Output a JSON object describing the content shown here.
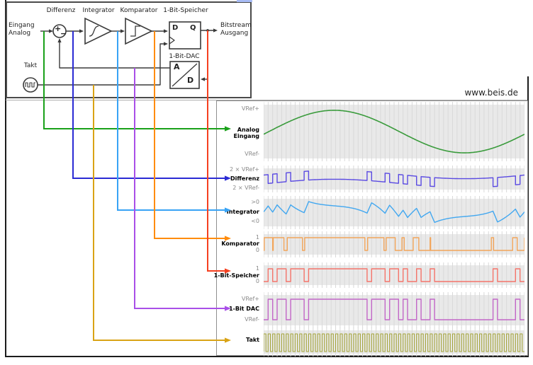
{
  "watermark": "www.beis.de",
  "diagram": {
    "block_differenz": "Differenz",
    "block_integrator": "Integrator",
    "block_komparator": "Komparator",
    "block_speicher": "1-Bit-Speicher",
    "block_dac": "1-Bit-DAC",
    "input_line1": "Eingang",
    "input_line2": "Analog",
    "output_line1": "Bitstream",
    "output_line2": "Ausgang",
    "takt_label": "Takt",
    "ff_d": "D",
    "ff_q": "Q",
    "dac_a": "A",
    "dac_d": "D",
    "sum_plus": "+",
    "sum_minus": "−"
  },
  "waveforms": {
    "rows": [
      {
        "id": "analog",
        "label_lines": [
          "Analog",
          "Eingang"
        ],
        "top_label": "VRef+",
        "bottom_label": "VRef-",
        "signal": "sine_input",
        "trace_color": "#3a9b3c",
        "arrow_color": "#1aa11a"
      },
      {
        "id": "differenz",
        "label_lines": [
          "Differenz"
        ],
        "top_label": "2 × VRef+",
        "bottom_label": "2 × VRef-",
        "signal": "input_minus_dac",
        "trace_color": "#5a4ae2",
        "arrow_color": "#2b2bd4"
      },
      {
        "id": "integrator",
        "label_lines": [
          "Integrator"
        ],
        "top_label": ">0",
        "bottom_label": "<0",
        "signal": "integrated_difference",
        "trace_color": "#41a7f0",
        "arrow_color": "#38a3f5"
      },
      {
        "id": "komparator",
        "label_lines": [
          "Komparator"
        ],
        "top_label": "1",
        "bottom_label": "0",
        "signal": "comparator_output",
        "trace_color": "#f2a55a",
        "arrow_color": "#ff8c0c"
      },
      {
        "id": "speicher",
        "label_lines": [
          "1-Bit-Speicher"
        ],
        "top_label": "1",
        "bottom_label": "0",
        "signal": "latched_bitstream",
        "trace_color": "#f4746a",
        "arrow_color": "#f54020"
      },
      {
        "id": "dac",
        "label_lines": [
          "1-Bit DAC"
        ],
        "top_label": "VRef+",
        "bottom_label": "VRef-",
        "signal": "dac_output",
        "trace_color": "#c267c7",
        "arrow_color": "#a94fe8"
      },
      {
        "id": "takt",
        "label_lines": [
          "Takt"
        ],
        "top_label": "",
        "bottom_label": "",
        "signal": "clock",
        "trace_color": "#a3a339",
        "arrow_color": "#d9a315"
      }
    ],
    "sim": {
      "clocks": 58,
      "sine_cycles": 1,
      "sine_amplitude": 0.94,
      "sine_phase": 0.02,
      "integrator_gain": 0.9,
      "substeps": 8
    }
  },
  "colors": {
    "grid": "#d9d9d9",
    "band_bg": "#e9e9e9",
    "diagram_stroke": "#3a3a3a",
    "panel_border": "#4a4a4a",
    "separator": "#aaaaaa",
    "axis_label": "#8a8a8a"
  }
}
